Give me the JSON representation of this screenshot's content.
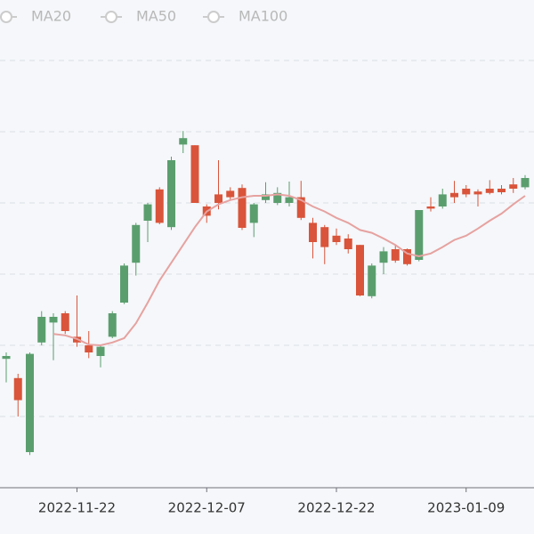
{
  "chart_data": {
    "type": "candlestick",
    "categories": [
      null,
      null,
      null,
      null,
      null,
      null,
      "2022-11-22",
      null,
      null,
      null,
      null,
      null,
      null,
      null,
      null,
      null,
      null,
      "2022-12-07",
      null,
      null,
      null,
      null,
      null,
      null,
      null,
      null,
      null,
      null,
      "2022-12-22",
      null,
      null,
      null,
      null,
      null,
      null,
      null,
      null,
      null,
      null,
      "2023-01-09",
      null,
      null,
      null,
      null,
      null
    ],
    "open": [
      1.81,
      1.54,
      0.5,
      2.04,
      2.32,
      2.45,
      2.12,
      2.0,
      1.85,
      2.12,
      2.6,
      3.16,
      3.75,
      4.19,
      3.66,
      4.82,
      4.81,
      3.95,
      4.12,
      4.17,
      4.21,
      3.72,
      4.04,
      4.0,
      4.0,
      4.08,
      3.72,
      3.66,
      3.54,
      3.5,
      3.41,
      2.69,
      3.16,
      3.35,
      3.35,
      3.2,
      3.95,
      3.95,
      4.14,
      4.2,
      4.16,
      4.2,
      4.2,
      4.26,
      4.22
    ],
    "high": [
      1.9,
      1.6,
      1.9,
      2.48,
      2.45,
      2.48,
      2.7,
      2.2,
      2.0,
      2.48,
      3.15,
      3.72,
      4.0,
      4.22,
      4.65,
      5.01,
      4.81,
      3.98,
      4.6,
      4.22,
      4.26,
      4.0,
      4.29,
      4.22,
      4.3,
      4.31,
      3.79,
      3.69,
      3.64,
      3.56,
      3.41,
      3.15,
      3.38,
      3.4,
      3.36,
      3.9,
      4.08,
      4.2,
      4.31,
      4.25,
      4.19,
      4.32,
      4.25,
      4.35,
      4.39
    ],
    "low": [
      1.48,
      1.0,
      0.46,
      2.0,
      1.79,
      2.16,
      1.98,
      1.82,
      1.69,
      2.1,
      2.58,
      2.98,
      3.45,
      3.7,
      3.62,
      4.7,
      4.0,
      3.72,
      3.91,
      4.04,
      3.62,
      3.52,
      4.0,
      3.97,
      3.95,
      3.76,
      3.22,
      3.14,
      3.41,
      3.29,
      2.69,
      2.66,
      3.0,
      3.16,
      3.12,
      3.18,
      3.88,
      3.92,
      4.0,
      4.08,
      3.95,
      4.12,
      4.12,
      4.14,
      4.19
    ],
    "close": [
      1.85,
      1.23,
      1.88,
      2.4,
      2.4,
      2.2,
      2.04,
      1.9,
      1.98,
      2.45,
      3.12,
      3.69,
      3.98,
      3.72,
      4.6,
      4.91,
      4.0,
      3.82,
      4.0,
      4.08,
      3.65,
      3.98,
      4.12,
      4.14,
      4.08,
      3.79,
      3.45,
      3.38,
      3.45,
      3.35,
      2.7,
      3.12,
      3.32,
      3.19,
      3.14,
      3.9,
      3.92,
      4.12,
      4.08,
      4.12,
      4.12,
      4.14,
      4.15,
      4.2,
      4.35
    ],
    "up_color": "#5b9e6e",
    "down_color": "#d9543a",
    "series": [
      {
        "name": "MA20",
        "color": "#e6a2a0",
        "values": [
          null,
          null,
          null,
          null,
          2.16,
          2.14,
          2.09,
          2.01,
          2.0,
          2.04,
          2.1,
          2.31,
          2.6,
          2.91,
          3.16,
          3.41,
          3.66,
          3.88,
          3.98,
          4.04,
          4.08,
          4.1,
          4.1,
          4.12,
          4.1,
          4.04,
          3.95,
          3.88,
          3.79,
          3.72,
          3.62,
          3.58,
          3.5,
          3.41,
          3.29,
          3.25,
          3.29,
          3.38,
          3.48,
          3.54,
          3.64,
          3.75,
          3.85,
          3.98,
          4.1
        ]
      },
      {
        "name": "MA50",
        "values": [
          null,
          null,
          null,
          null,
          null,
          null,
          null,
          null,
          null,
          null,
          null,
          null,
          null,
          null,
          null,
          null,
          null,
          null,
          null,
          null,
          null,
          null,
          null,
          null,
          null,
          null,
          null,
          null,
          null,
          null,
          null,
          null,
          null,
          null,
          null,
          null,
          null,
          null,
          null,
          null,
          null,
          null,
          null,
          null,
          null
        ]
      },
      {
        "name": "MA100",
        "values": [
          null,
          null,
          null,
          null,
          null,
          null,
          null,
          null,
          null,
          null,
          null,
          null,
          null,
          null,
          null,
          null,
          null,
          null,
          null,
          null,
          null,
          null,
          null,
          null,
          null,
          null,
          null,
          null,
          null,
          null,
          null,
          null,
          null,
          null,
          null,
          null,
          null,
          null,
          null,
          null,
          null,
          null,
          null,
          null,
          null
        ]
      }
    ],
    "ylim": [
      0,
      6.5
    ],
    "yticks": [
      1,
      2,
      3,
      4,
      5,
      6
    ],
    "grid": true
  }
}
